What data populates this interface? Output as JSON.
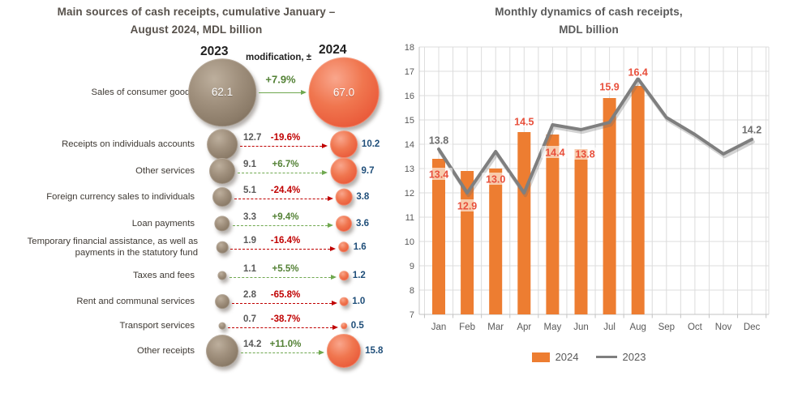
{
  "left_panel": {
    "title_line1": "Main sources of cash receipts, cumulative January –",
    "title_line2": "August 2024,  MDL billion",
    "col_2023": "2023",
    "col_mod": "modification, ±",
    "col_2024": "2024",
    "rows": [
      {
        "label": "Sales of consumer goods",
        "v2023": 62.1,
        "change": "+7.9%",
        "v2024": 67.0,
        "direction": "up"
      },
      {
        "label": "Receipts on individuals accounts",
        "v2023": 12.7,
        "change": "-19.6%",
        "v2024": 10.2,
        "direction": "down"
      },
      {
        "label": "Other services",
        "v2023": 9.1,
        "change": "+6.7%",
        "v2024": 9.7,
        "direction": "up"
      },
      {
        "label": "Foreign currency sales to individuals",
        "v2023": 5.1,
        "change": "-24.4%",
        "v2024": 3.8,
        "direction": "down"
      },
      {
        "label": "Loan payments",
        "v2023": 3.3,
        "change": "+9.4%",
        "v2024": 3.6,
        "direction": "up"
      },
      {
        "label": "Temporary financial assistance, as well as payments in the statutory fund",
        "v2023": 1.9,
        "change": "-16.4%",
        "v2024": 1.6,
        "direction": "down"
      },
      {
        "label": "Taxes and fees",
        "v2023": 1.1,
        "change": "+5.5%",
        "v2024": 1.2,
        "direction": "up"
      },
      {
        "label": "Rent and communal services",
        "v2023": 2.8,
        "change": "-65.8%",
        "v2024": 1.0,
        "direction": "down"
      },
      {
        "label": "Transport services",
        "v2023": 0.7,
        "change": "-38.7%",
        "v2024": 0.5,
        "direction": "down"
      },
      {
        "label": "Other receipts",
        "v2023": 14.2,
        "change": "+11.0%",
        "v2024": 15.8,
        "direction": "up"
      }
    ]
  },
  "right_panel": {
    "title_line1": "Monthly dynamics of cash receipts,",
    "title_line2": "MDL billion"
  },
  "chart_data": {
    "type": "combo",
    "title": "Monthly dynamics of cash receipts, MDL billion",
    "categories": [
      "Jan",
      "Feb",
      "Mar",
      "Apr",
      "May",
      "Jun",
      "Jul",
      "Aug",
      "Sep",
      "Oct",
      "Nov",
      "Dec"
    ],
    "series": [
      {
        "name": "2024",
        "type": "bar",
        "color": "#ed7d31",
        "values": [
          13.4,
          12.9,
          13.0,
          14.5,
          14.4,
          13.8,
          15.9,
          16.4,
          null,
          null,
          null,
          null
        ],
        "data_labels": "all"
      },
      {
        "name": "2023",
        "type": "line",
        "color": "#7f7f7f",
        "values": [
          13.8,
          12.0,
          13.7,
          12.0,
          14.8,
          14.6,
          14.9,
          16.7,
          15.1,
          14.4,
          13.6,
          14.2
        ],
        "data_labels": "first_last",
        "labeled_values": {
          "Jan": "13.8",
          "Dec": "14.2"
        }
      }
    ],
    "ylim": [
      7,
      18
    ],
    "ytick_step": 1,
    "grid": true,
    "legend_position": "bottom"
  },
  "colors": {
    "bubble_2023": "#9a8a77",
    "bubble_2024": "#ee6a4d",
    "positive": "#538135",
    "negative": "#c00000",
    "value_2023": "#595959",
    "value_2024": "#1f4e79",
    "bar": "#ed7d31",
    "bar_label": "#e8503c",
    "line": "#7f7f7f",
    "line_label": "#6d6d6d",
    "axis_text": "#595959",
    "title": "#595959"
  }
}
